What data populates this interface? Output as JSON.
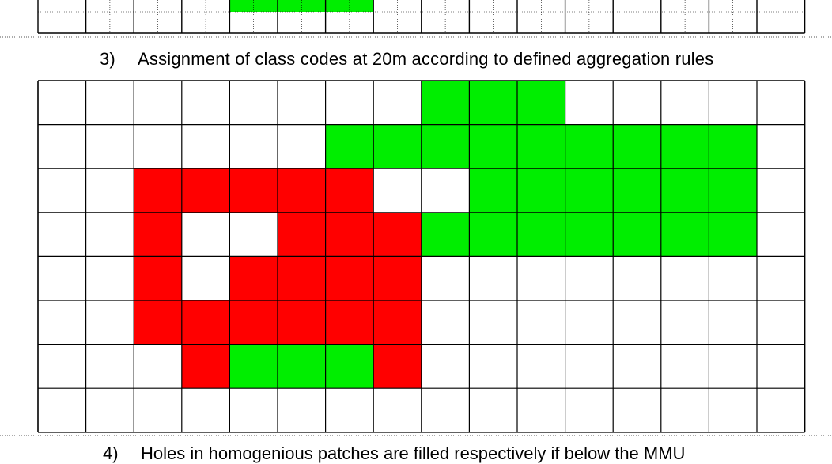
{
  "step_3": {
    "number": "3)",
    "text": "Assignment of class codes at 20m according to defined aggregation rules"
  },
  "step_4": {
    "number": "4)",
    "text": "Holes in homogenious patches are filled respectively if below the MMU"
  },
  "colors": {
    "green": "#00ee00",
    "red": "#ff0000",
    "empty": "#ffffff",
    "grid_line": "#000000",
    "page_divider": "#555555"
  },
  "grid": {
    "rows": 8,
    "cols": 16,
    "cells": [
      "........GGG.....",
      "......GGGGGGGGG.",
      "..RRRRR..GGGGGG.",
      "..R..RRRGGGGGGG.",
      "..R.RRRR........",
      "..RRRRRR........",
      "...RGGGR........",
      "................"
    ]
  },
  "previous_grid_fragment": {
    "green_cols": [
      4,
      5,
      6
    ]
  }
}
